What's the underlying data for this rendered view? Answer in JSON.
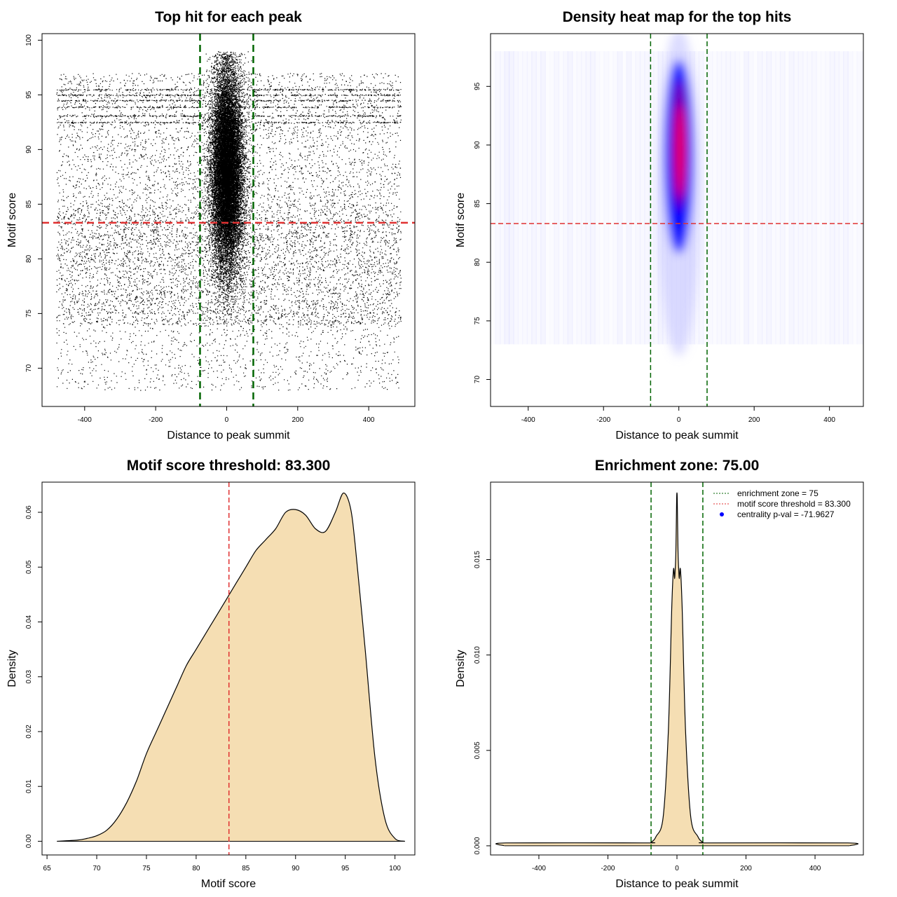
{
  "chart_data": [
    {
      "id": "scatter",
      "type": "scatter",
      "title": "Top hit for each peak",
      "xlabel": "Distance to peak summit",
      "ylabel": "Motif score",
      "xlim": [
        -520,
        530
      ],
      "ylim": [
        66.5,
        100.6
      ],
      "xticks": [
        -400,
        -200,
        0,
        200,
        400
      ],
      "xtick_labels": [
        "-400",
        "-200",
        "0",
        "200",
        "400"
      ],
      "yticks": [
        70,
        75,
        80,
        85,
        90,
        95,
        100
      ],
      "ytick_labels": [
        "70",
        "75",
        "80",
        "85",
        "90",
        "95",
        "100"
      ],
      "point_color": "#000000",
      "approx_points": {
        "background": {
          "count": 9000,
          "x_range": [
            -480,
            490
          ],
          "y_range": [
            68,
            98
          ]
        },
        "central_cluster": {
          "count": 20000,
          "x_center": 0,
          "x_sd": 22,
          "y_range": [
            71,
            99
          ],
          "y_mode": 88
        },
        "horizontal_bands_y": [
          92.5,
          93.1,
          93.9,
          94.5,
          95.0,
          95.5
        ]
      },
      "vlines": [
        {
          "x": -75,
          "color": "#006400"
        },
        {
          "x": 75,
          "color": "#006400"
        }
      ],
      "hlines": [
        {
          "y": 83.3,
          "color": "#e03030"
        }
      ],
      "grid": false
    },
    {
      "id": "heatmap",
      "type": "heatmap",
      "title": "Density heat map for the top hits",
      "xlabel": "Distance to peak summit",
      "ylabel": "Motif score",
      "xlim": [
        -500,
        490
      ],
      "ylim": [
        67.7,
        99.5
      ],
      "xticks": [
        -400,
        -200,
        0,
        200,
        400
      ],
      "xtick_labels": [
        "-400",
        "-200",
        "0",
        "200",
        "400"
      ],
      "yticks": [
        70,
        75,
        80,
        85,
        90,
        95
      ],
      "ytick_labels": [
        "70",
        "75",
        "80",
        "85",
        "90",
        "95"
      ],
      "colormap": [
        "#ffffff",
        "#0000ff",
        "#ff0000"
      ],
      "hotspot": {
        "x_center": 0,
        "x_halfwidth": 22,
        "y_range": [
          80,
          98
        ],
        "peak_y": 90
      },
      "vlines": [
        {
          "x": -75,
          "color": "#006400"
        },
        {
          "x": 75,
          "color": "#006400"
        }
      ],
      "hlines": [
        {
          "y": 83.3,
          "color": "#e03030"
        }
      ],
      "grid": false
    },
    {
      "id": "score-density",
      "type": "area",
      "title": "Motif score threshold: 83.300",
      "xlabel": "Motif score",
      "ylabel": "Density",
      "xlim": [
        64.5,
        102
      ],
      "ylim": [
        -0.0025,
        0.0655
      ],
      "xticks": [
        65,
        70,
        75,
        80,
        85,
        90,
        95,
        100
      ],
      "xtick_labels": [
        "65",
        "70",
        "75",
        "80",
        "85",
        "90",
        "95",
        "100"
      ],
      "yticks": [
        0,
        0.01,
        0.02,
        0.03,
        0.04,
        0.05,
        0.06
      ],
      "ytick_labels": [
        "0.00",
        "0.01",
        "0.02",
        "0.03",
        "0.04",
        "0.05",
        "0.06"
      ],
      "fill_color": "#f5deb3",
      "x": [
        66,
        68,
        69,
        70,
        71,
        72,
        73,
        74,
        75,
        76,
        77,
        78,
        79,
        80,
        81,
        82,
        83,
        84,
        85,
        86,
        87,
        88,
        89,
        90,
        91,
        92,
        93,
        94,
        94.8,
        95.5,
        96,
        97,
        98,
        99,
        100,
        101
      ],
      "y": [
        0,
        0.0002,
        0.0005,
        0.001,
        0.002,
        0.004,
        0.007,
        0.011,
        0.016,
        0.02,
        0.024,
        0.028,
        0.032,
        0.035,
        0.038,
        0.041,
        0.044,
        0.047,
        0.05,
        0.053,
        0.055,
        0.057,
        0.06,
        0.0605,
        0.0595,
        0.057,
        0.0565,
        0.06,
        0.0635,
        0.061,
        0.054,
        0.035,
        0.015,
        0.004,
        0.0005,
        0
      ],
      "vlines": [
        {
          "x": 83.3,
          "color": "#e03030"
        }
      ],
      "grid": false
    },
    {
      "id": "distance-density",
      "type": "area",
      "title": "Enrichment zone: 75.00",
      "xlabel": "Distance to peak summit",
      "ylabel": "Density",
      "xlim": [
        -540,
        540
      ],
      "ylim": [
        -0.00048,
        0.01906
      ],
      "xticks": [
        -400,
        -200,
        0,
        200,
        400
      ],
      "xtick_labels": [
        "-400",
        "-200",
        "0",
        "200",
        "400"
      ],
      "yticks": [
        0,
        0.005,
        0.01,
        0.015
      ],
      "ytick_labels": [
        "0.000",
        "0.005",
        "0.010",
        "0.015"
      ],
      "fill_color": "#f5deb3",
      "x": [
        -500,
        -495,
        -100,
        -75,
        -60,
        -40,
        -25,
        -15,
        -10,
        -7,
        -5,
        -3,
        -1,
        0,
        1,
        3,
        5,
        7,
        10,
        15,
        25,
        40,
        60,
        75,
        100,
        495,
        500
      ],
      "y": [
        0,
        0.00015,
        0.00015,
        0.0002,
        0.0005,
        0.0015,
        0.006,
        0.0125,
        0.0145,
        0.014,
        0.0145,
        0.0155,
        0.018,
        0.0185,
        0.018,
        0.0155,
        0.0145,
        0.014,
        0.0145,
        0.0125,
        0.006,
        0.0015,
        0.0005,
        0.0002,
        0.00015,
        0.00015,
        0
      ],
      "vlines": [
        {
          "x": -75,
          "color": "#006400"
        },
        {
          "x": 75,
          "color": "#006400"
        }
      ],
      "legend": {
        "placement": "top-right",
        "entries": [
          {
            "label": "enrichment zone = 75",
            "color": "#006400",
            "style": "dotted-line"
          },
          {
            "label": "motif score threshold = 83.300",
            "color": "#e03030",
            "style": "dotted-line"
          },
          {
            "label": "centrality p-val = -71.9627",
            "color": "#0000ff",
            "style": "point"
          }
        ]
      },
      "grid": false
    }
  ]
}
